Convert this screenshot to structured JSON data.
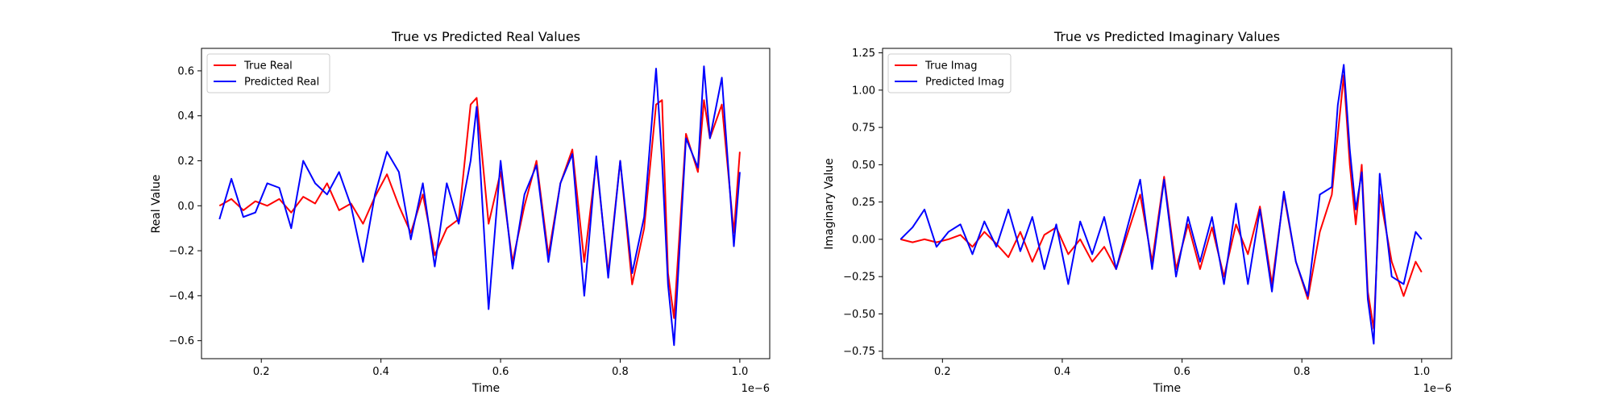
{
  "chart_data": [
    {
      "type": "line",
      "title": "True vs Predicted Real Values",
      "xlabel": "Time",
      "ylabel": "Real Value",
      "x_offset_label": "1e−6",
      "xlim": [
        0.1,
        1.05
      ],
      "ylim": [
        -0.68,
        0.7
      ],
      "x_ticks": [
        0.2,
        0.4,
        0.6,
        0.8,
        1.0
      ],
      "x_tick_labels": [
        "0.2",
        "0.4",
        "0.6",
        "0.8",
        "1.0"
      ],
      "y_ticks": [
        -0.6,
        -0.4,
        -0.2,
        0.0,
        0.2,
        0.4,
        0.6
      ],
      "y_tick_labels": [
        "−0.6",
        "−0.4",
        "−0.2",
        "0.0",
        "0.2",
        "0.4",
        "0.6"
      ],
      "grid": false,
      "legend_position": "top-left",
      "x": [
        0.13,
        0.15,
        0.17,
        0.19,
        0.21,
        0.23,
        0.25,
        0.27,
        0.29,
        0.31,
        0.33,
        0.35,
        0.37,
        0.39,
        0.41,
        0.43,
        0.45,
        0.47,
        0.49,
        0.51,
        0.53,
        0.55,
        0.56,
        0.58,
        0.6,
        0.62,
        0.64,
        0.66,
        0.68,
        0.7,
        0.72,
        0.74,
        0.76,
        0.78,
        0.8,
        0.82,
        0.84,
        0.86,
        0.87,
        0.88,
        0.89,
        0.91,
        0.93,
        0.94,
        0.95,
        0.97,
        0.99,
        1.0
      ],
      "series": [
        {
          "name": "True Real",
          "color": "#ff0000",
          "values": [
            0.0,
            0.03,
            -0.02,
            0.02,
            0.0,
            0.03,
            -0.03,
            0.04,
            0.01,
            0.1,
            -0.02,
            0.01,
            -0.08,
            0.04,
            0.14,
            0.0,
            -0.12,
            0.05,
            -0.22,
            -0.1,
            -0.06,
            0.45,
            0.48,
            -0.08,
            0.15,
            -0.25,
            0.0,
            0.2,
            -0.22,
            0.1,
            0.25,
            -0.25,
            0.2,
            -0.3,
            0.2,
            -0.35,
            -0.1,
            0.45,
            0.47,
            -0.3,
            -0.5,
            0.32,
            0.15,
            0.47,
            0.3,
            0.45,
            -0.12,
            0.24
          ]
        },
        {
          "name": "Predicted Real",
          "color": "#0000ff",
          "values": [
            -0.06,
            0.12,
            -0.05,
            -0.03,
            0.1,
            0.08,
            -0.1,
            0.2,
            0.1,
            0.05,
            0.15,
            0.0,
            -0.25,
            0.05,
            0.24,
            0.15,
            -0.15,
            0.1,
            -0.27,
            0.1,
            -0.08,
            0.2,
            0.44,
            -0.46,
            0.2,
            -0.28,
            0.05,
            0.18,
            -0.25,
            0.1,
            0.23,
            -0.4,
            0.22,
            -0.32,
            0.2,
            -0.3,
            -0.05,
            0.61,
            0.2,
            -0.35,
            -0.62,
            0.3,
            0.17,
            0.62,
            0.3,
            0.57,
            -0.18,
            0.15
          ]
        }
      ]
    },
    {
      "type": "line",
      "title": "True vs Predicted Imaginary Values",
      "xlabel": "Time",
      "ylabel": "Imaginary Value",
      "x_offset_label": "1e−6",
      "xlim": [
        0.1,
        1.05
      ],
      "ylim": [
        -0.8,
        1.28
      ],
      "x_ticks": [
        0.2,
        0.4,
        0.6,
        0.8,
        1.0
      ],
      "x_tick_labels": [
        "0.2",
        "0.4",
        "0.6",
        "0.8",
        "1.0"
      ],
      "y_ticks": [
        -0.75,
        -0.5,
        -0.25,
        0.0,
        0.25,
        0.5,
        0.75,
        1.0,
        1.25
      ],
      "y_tick_labels": [
        "−0.75",
        "−0.50",
        "−0.25",
        "0.00",
        "0.25",
        "0.50",
        "0.75",
        "1.00",
        "1.25"
      ],
      "grid": false,
      "legend_position": "top-left",
      "x": [
        0.13,
        0.15,
        0.17,
        0.19,
        0.21,
        0.23,
        0.25,
        0.27,
        0.29,
        0.31,
        0.33,
        0.35,
        0.37,
        0.39,
        0.41,
        0.43,
        0.45,
        0.47,
        0.49,
        0.51,
        0.53,
        0.55,
        0.57,
        0.59,
        0.61,
        0.63,
        0.65,
        0.67,
        0.69,
        0.71,
        0.73,
        0.75,
        0.77,
        0.79,
        0.81,
        0.83,
        0.85,
        0.86,
        0.87,
        0.88,
        0.89,
        0.9,
        0.91,
        0.92,
        0.93,
        0.95,
        0.97,
        0.99,
        1.0
      ],
      "series": [
        {
          "name": "True Imag",
          "color": "#ff0000",
          "values": [
            0.0,
            -0.02,
            0.0,
            -0.02,
            0.0,
            0.03,
            -0.05,
            0.05,
            -0.03,
            -0.12,
            0.05,
            -0.15,
            0.03,
            0.08,
            -0.1,
            0.0,
            -0.15,
            -0.05,
            -0.2,
            0.05,
            0.3,
            -0.15,
            0.42,
            -0.2,
            0.1,
            -0.2,
            0.08,
            -0.25,
            0.1,
            -0.1,
            0.22,
            -0.3,
            0.3,
            -0.15,
            -0.4,
            0.05,
            0.3,
            0.7,
            1.1,
            0.5,
            0.1,
            0.5,
            -0.35,
            -0.6,
            0.3,
            -0.15,
            -0.38,
            -0.15,
            -0.22
          ]
        },
        {
          "name": "Predicted Imag",
          "color": "#0000ff",
          "values": [
            0.0,
            0.08,
            0.2,
            -0.05,
            0.05,
            0.1,
            -0.1,
            0.12,
            -0.05,
            0.2,
            -0.08,
            0.15,
            -0.2,
            0.1,
            -0.3,
            0.12,
            -0.1,
            0.15,
            -0.2,
            0.1,
            0.4,
            -0.2,
            0.4,
            -0.25,
            0.15,
            -0.15,
            0.15,
            -0.3,
            0.24,
            -0.3,
            0.2,
            -0.35,
            0.32,
            -0.15,
            -0.38,
            0.3,
            0.35,
            0.9,
            1.17,
            0.6,
            0.2,
            0.45,
            -0.4,
            -0.7,
            0.44,
            -0.25,
            -0.3,
            0.05,
            0.0
          ]
        }
      ]
    }
  ]
}
